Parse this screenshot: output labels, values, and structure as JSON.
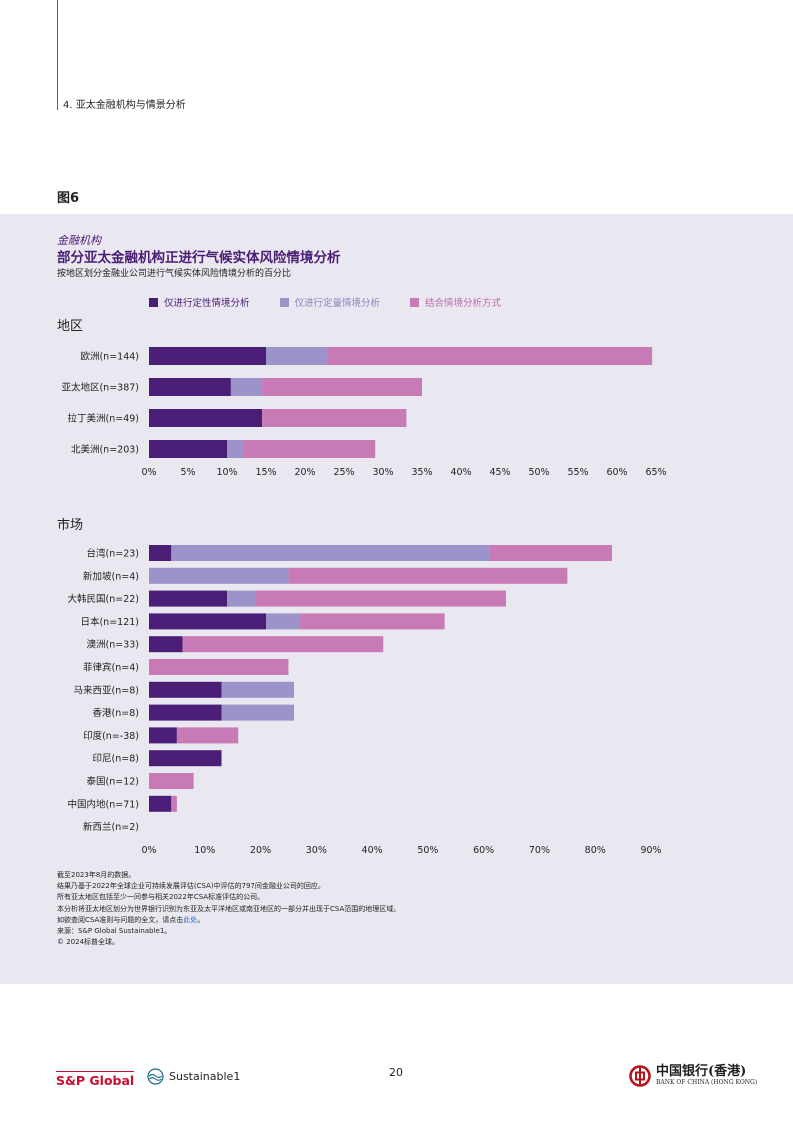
{
  "section_header": "4. 亚太金融机构与情景分析",
  "figure_label": "图6",
  "eyebrow": "金融机构",
  "title": "部分亚太金融机构正进行气候实体风险情境分析",
  "subtitle": "按地区划分金融业公司进行气候实体风险情境分析的百分比",
  "legend": [
    {
      "label": "仅进行定性情境分析",
      "color": "#4a1d76"
    },
    {
      "label": "仅进行定量情境分析",
      "color": "#9b93c9"
    },
    {
      "label": "结合情境分析方式",
      "color": "#c87ab6"
    }
  ],
  "chart_data": [
    {
      "type": "bar",
      "orientation": "horizontal",
      "stacked": true,
      "title": "地区",
      "categories": [
        "欧洲(n=144)",
        "亚太地区(n=387)",
        "拉丁美洲(n=49)",
        "北美洲(n=203)"
      ],
      "series": [
        {
          "name": "仅进行定性情境分析",
          "values": [
            15,
            10.5,
            14.5,
            10
          ]
        },
        {
          "name": "仅进行定量情境分析",
          "values": [
            7.8,
            4,
            0,
            2
          ]
        },
        {
          "name": "结合情境分析方式",
          "values": [
            41.7,
            20.5,
            18.5,
            17
          ]
        }
      ],
      "xlim": [
        0,
        65
      ],
      "xticks": [
        "0%",
        "5%",
        "10%",
        "15%",
        "20%",
        "25%",
        "30%",
        "35%",
        "40%",
        "45%",
        "50%",
        "55%",
        "60%",
        "65%"
      ]
    },
    {
      "type": "bar",
      "orientation": "horizontal",
      "stacked": true,
      "title": "市场",
      "categories": [
        "台湾(n=23)",
        "新加坡(n=4)",
        "大韩民国(n=22)",
        "日本(n=121)",
        "澳洲(n=33)",
        "菲律宾(n=4)",
        "马来西亚(n=8)",
        "香港(n=8)",
        "印度(n=-38)",
        "印尼(n=8)",
        "泰国(n=12)",
        "中国内地(n=71)",
        "新西兰(n=2)"
      ],
      "series": [
        {
          "name": "仅进行定性情境分析",
          "values": [
            4,
            0,
            14,
            21,
            6,
            0,
            13,
            13,
            5,
            13,
            0,
            4,
            0
          ]
        },
        {
          "name": "仅进行定量情境分析",
          "values": [
            57,
            25,
            5,
            6,
            0,
            0,
            13,
            13,
            0,
            0,
            0,
            0,
            0
          ]
        },
        {
          "name": "结合情境分析方式",
          "values": [
            22,
            50,
            45,
            26,
            36,
            25,
            0,
            0,
            11,
            0,
            8,
            1,
            0
          ]
        }
      ],
      "xlim": [
        0,
        90
      ],
      "xticks": [
        "0%",
        "10%",
        "20%",
        "30%",
        "40%",
        "50%",
        "60%",
        "70%",
        "80%",
        "90%"
      ]
    }
  ],
  "notes": [
    "截至2023年8月的数据。",
    "结果乃基于2022年全球企业可持续发展评估(CSA)中评估的797间金融业公司的回应。",
    "所有亚太地区包括至少一间参与相关2022年CSA标准评估的公司。",
    "本分析将亚太地区划分为世界银行识别为东亚及太平洋地区或南亚地区的一部分并出现于CSA范围的地理区域。",
    "来源：S&P Global Sustainable1。",
    "© 2024标普全球。"
  ],
  "notes_link_line": {
    "prefix": "如欲查阅CSA准则与问题的全文，请点击",
    "link": "此处",
    "suffix": "。"
  },
  "footer": {
    "sp_global": "S&P Global",
    "sustainable1": "Sustainable1",
    "page_number": "20",
    "boc_cn": "中国银行(香港)",
    "boc_en": "BANK OF CHINA (HONG KONG)"
  }
}
